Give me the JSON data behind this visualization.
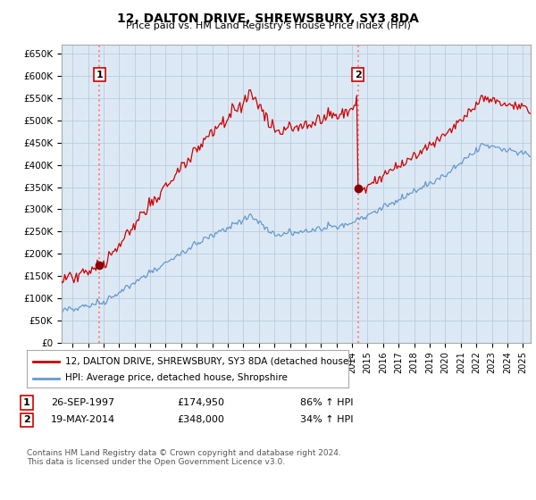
{
  "title": "12, DALTON DRIVE, SHREWSBURY, SY3 8DA",
  "subtitle": "Price paid vs. HM Land Registry's House Price Index (HPI)",
  "ylim": [
    0,
    670000
  ],
  "yticks": [
    0,
    50000,
    100000,
    150000,
    200000,
    250000,
    300000,
    350000,
    400000,
    450000,
    500000,
    550000,
    600000,
    650000
  ],
  "ytick_labels": [
    "£0",
    "£50K",
    "£100K",
    "£150K",
    "£200K",
    "£250K",
    "£300K",
    "£350K",
    "£400K",
    "£450K",
    "£500K",
    "£550K",
    "£600K",
    "£650K"
  ],
  "xlim_start": 1995.3,
  "xlim_end": 2025.5,
  "sale1_date": 1997.74,
  "sale1_price": 174950,
  "sale2_date": 2014.38,
  "sale2_price": 348000,
  "line_color_property": "#cc0000",
  "line_color_hpi": "#6699cc",
  "dot_color": "#880000",
  "vline_color": "#ff8888",
  "plot_bg_color": "#dce9f5",
  "fig_bg_color": "#ffffff",
  "legend_line1": "12, DALTON DRIVE, SHREWSBURY, SY3 8DA (detached house)",
  "legend_line2": "HPI: Average price, detached house, Shropshire",
  "footnote": "Contains HM Land Registry data © Crown copyright and database right 2024.\nThis data is licensed under the Open Government Licence v3.0.",
  "grid_color": "#bbccdd"
}
